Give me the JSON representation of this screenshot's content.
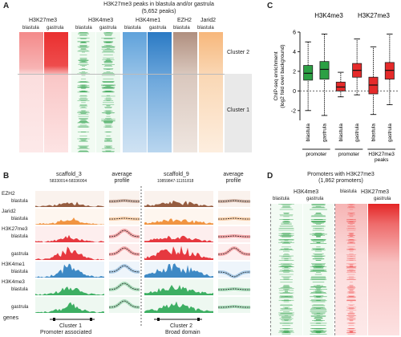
{
  "panels": {
    "a": {
      "letter": "A",
      "title": "H3K27me3 peaks in blastula and/or gastrula",
      "subtitle": "(5,652 peaks)",
      "tracks": [
        {
          "mark": "H3K27me3",
          "stage1": "blastula",
          "stage2": "gastrula",
          "color": "#e8262b"
        },
        {
          "mark": "H3K4me3",
          "stage1": "blastula",
          "stage2": "gastrula",
          "color": "#2fa24a"
        },
        {
          "mark": "H3K4me1",
          "stage1": "blastula",
          "stage2": "gastrula",
          "color": "#2c7bc7"
        },
        {
          "mark": "EZH2",
          "stage1": "blastula",
          "color": "#8a5a44"
        },
        {
          "mark": "Jarid2",
          "stage1": "blastula",
          "color": "#f08c2a"
        }
      ],
      "clusters": [
        "Cluster 2",
        "Cluster 1"
      ]
    },
    "b": {
      "letter": "B",
      "left_locus": {
        "name": "scaffold_3",
        "coords": "58330014-58336004"
      },
      "right_locus": {
        "name": "scaffold_9",
        "coords": "10859847-11151818"
      },
      "avg_label": "average profile",
      "tracks": [
        {
          "label": "EZH2",
          "stage": "blastula",
          "color": "#8a4b2c"
        },
        {
          "label": "Jarid2",
          "stage": "blastula",
          "color": "#ef8a2e"
        },
        {
          "label": "H3K27me3",
          "stage": "blastula",
          "color": "#e3242b"
        },
        {
          "label": "",
          "stage": "gastrula",
          "color": "#e3242b"
        },
        {
          "label": "H3K4me1",
          "stage": "blastula",
          "color": "#2a7dbf"
        },
        {
          "label": "H3K4me3",
          "stage": "blastula",
          "color": "#29a653"
        },
        {
          "label": "",
          "stage": "gastrula",
          "color": "#29a653"
        }
      ],
      "genes_label": "genes",
      "cluster1": {
        "name": "Cluster 1",
        "desc": "Promoter associated"
      },
      "cluster2": {
        "name": "Cluster 2",
        "desc": "Broad domain"
      }
    },
    "c": {
      "letter": "C"
    },
    "d": {
      "letter": "D",
      "title": "Promoters with H3K27me3",
      "subtitle": "(1,862 promoters)",
      "groups": [
        {
          "mark": "H3K4me3",
          "stage1": "blastula",
          "stage2": "gastrula",
          "color": "#2fa24a"
        },
        {
          "mark": "H3K27me3",
          "stage1": "blastula",
          "stage2": "gastrula",
          "color": "#e8262b"
        }
      ]
    }
  },
  "chart_data": {
    "type": "box",
    "groups": [
      "H3K4me3",
      "H3K27me3"
    ],
    "ylabel": "ChIP-seq enrichment\n(log2 fold over background)",
    "ylim": [
      -3,
      6
    ],
    "yticks": [
      "-2",
      "0",
      "2",
      "4",
      "6"
    ],
    "categories": [
      {
        "stage": "blastula",
        "group": "promoter",
        "color": "#2ca044",
        "whisker_low": -2.0,
        "q1": 1.1,
        "median": 1.8,
        "q3": 2.6,
        "whisker_high": 5.0
      },
      {
        "stage": "gastrula",
        "group": "promoter",
        "color": "#2ca044",
        "whisker_low": -2.5,
        "q1": 1.2,
        "median": 2.2,
        "q3": 3.0,
        "whisker_high": 5.8
      },
      {
        "stage": "blastula",
        "group": "promoter",
        "color": "#e52a2a",
        "whisker_low": -0.6,
        "q1": 0.0,
        "median": 0.4,
        "q3": 0.9,
        "whisker_high": 1.9
      },
      {
        "stage": "gastrula",
        "group": "promoter",
        "color": "#e52a2a",
        "whisker_low": -0.4,
        "q1": 1.4,
        "median": 2.1,
        "q3": 2.8,
        "whisker_high": 5.3
      },
      {
        "stage": "blastula",
        "group": "H3K27me3 peaks",
        "color": "#e52a2a",
        "whisker_low": -2.4,
        "q1": -0.3,
        "median": 0.6,
        "q3": 1.4,
        "whisker_high": 4.5
      },
      {
        "stage": "gastrula",
        "group": "H3K27me3 peaks",
        "color": "#e52a2a",
        "whisker_low": -1.4,
        "q1": 1.2,
        "median": 2.1,
        "q3": 2.9,
        "whisker_high": 5.8
      }
    ],
    "xgroups": [
      "promoter",
      "promoter",
      "H3K27me3 peaks"
    ]
  }
}
